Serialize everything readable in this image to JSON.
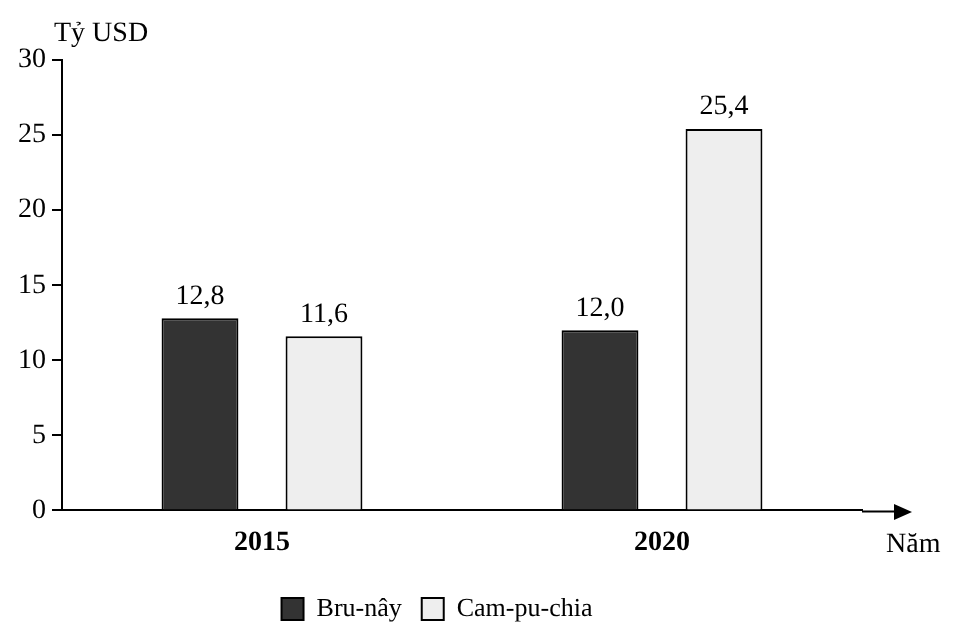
{
  "chart_data": {
    "type": "bar",
    "xlabel": "Năm",
    "ylabel": "Tỷ USD",
    "categories": [
      "2015",
      "2020"
    ],
    "series": [
      {
        "name": "Bru-nây",
        "color": "#333333",
        "values": [
          12.8,
          12.0
        ],
        "value_labels": [
          "12,8",
          "12,0"
        ]
      },
      {
        "name": "Cam-pu-chia",
        "color": "#eeeeee",
        "values": [
          11.6,
          25.4
        ],
        "value_labels": [
          "11,6",
          "25,4"
        ]
      }
    ],
    "ylim": [
      0,
      30
    ],
    "yticks": [
      0,
      5,
      10,
      15,
      20,
      25,
      30
    ],
    "grid": false,
    "legend": "bottom"
  }
}
